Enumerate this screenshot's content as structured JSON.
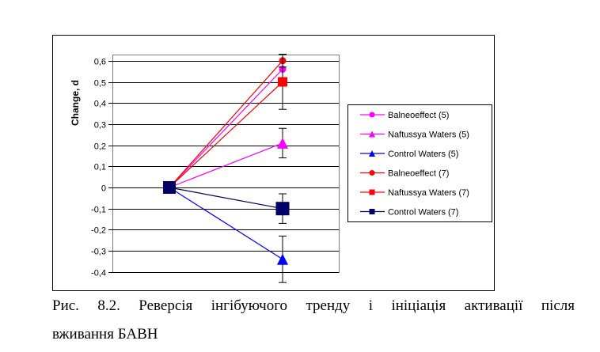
{
  "chart_data": {
    "type": "line",
    "title": "",
    "xlabel": "",
    "ylabel": "Change, d",
    "ylim": [
      -0.4,
      0.6
    ],
    "yticks": [
      "-0,4",
      "-0,3",
      "-0,2",
      "-0,1",
      "0",
      "0,1",
      "0,2",
      "0,3",
      "0,4",
      "0,5",
      "0,6"
    ],
    "ytick_values": [
      -0.4,
      -0.3,
      -0.2,
      -0.1,
      0,
      0.1,
      0.2,
      0.3,
      0.4,
      0.5,
      0.6
    ],
    "x": [
      0,
      1
    ],
    "grid": true,
    "legend_position": "right",
    "series": [
      {
        "name": "Balneoeffect (5)",
        "values": [
          0,
          0.56
        ],
        "error": 0.07,
        "color": "#ff00ff",
        "marker": "circle"
      },
      {
        "name": "Naftussya Waters (5)",
        "values": [
          0,
          0.21
        ],
        "error": 0.07,
        "color": "#ff00ff",
        "marker": "triangle"
      },
      {
        "name": "Control Waters (5)",
        "values": [
          0,
          -0.34
        ],
        "error": 0.11,
        "color": "#0000ff",
        "marker": "triangle"
      },
      {
        "name": "Balneoeffect (7)",
        "values": [
          0,
          0.6
        ],
        "error": 0.03,
        "color": "#ff0000",
        "marker": "circle"
      },
      {
        "name": "Naftussya Waters (7)",
        "values": [
          0,
          0.5
        ],
        "error": 0.13,
        "color": "#ff0000",
        "marker": "square"
      },
      {
        "name": "Control Waters (7)",
        "values": [
          0,
          -0.1
        ],
        "error": 0.07,
        "color": "#000066",
        "marker": "square"
      }
    ]
  },
  "caption": {
    "line1": "Рис. 8.2. Реверсія інгібуючого тренду і ініціація активації після",
    "line2": "вживання БАВН"
  }
}
